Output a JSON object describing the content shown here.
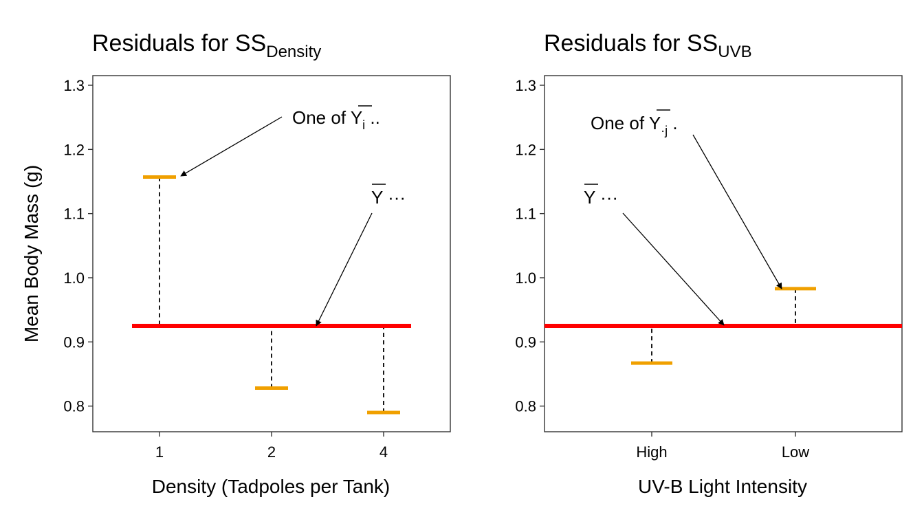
{
  "colors": {
    "grand_mean_line": "#FF0000",
    "group_mean": "#F0A000",
    "residual_line": "#000000",
    "axis": "#333333"
  },
  "chart_data": [
    {
      "type": "residual-plot",
      "title": "Residuals for SS",
      "title_subscript": "Density",
      "xlabel": "Density (Tadpoles per Tank)",
      "ylabel": "Mean Body Mass (g)",
      "categories": [
        "1",
        "2",
        "4"
      ],
      "group_means": [
        1.157,
        0.828,
        0.79
      ],
      "grand_mean": 0.925,
      "ylim": [
        0.76,
        1.315
      ],
      "yticks": [
        "0.8",
        "0.9",
        "1.0",
        "1.1",
        "1.2",
        "1.3"
      ],
      "grid": false,
      "annotations": {
        "group_mean_label": {
          "prefix": "One of ",
          "symbol": "Y",
          "subscript": "i",
          "suffix": " .."
        },
        "grand_mean_label": {
          "symbol": "Y",
          "suffix": " ···"
        }
      }
    },
    {
      "type": "residual-plot",
      "title": "Residuals for SS",
      "title_subscript": "UVB",
      "xlabel": "UV-B Light Intensity",
      "ylabel": "",
      "categories": [
        "High",
        "Low"
      ],
      "group_means": [
        0.867,
        0.983
      ],
      "grand_mean": 0.925,
      "ylim": [
        0.76,
        1.315
      ],
      "yticks": [
        "0.8",
        "0.9",
        "1.0",
        "1.1",
        "1.2",
        "1.3"
      ],
      "grid": false,
      "annotations": {
        "group_mean_label": {
          "prefix": "One of ",
          "symbol": "Y",
          "subscript": "·j",
          "suffix": " ."
        },
        "grand_mean_label": {
          "symbol": "Y",
          "suffix": " ···"
        }
      }
    }
  ]
}
